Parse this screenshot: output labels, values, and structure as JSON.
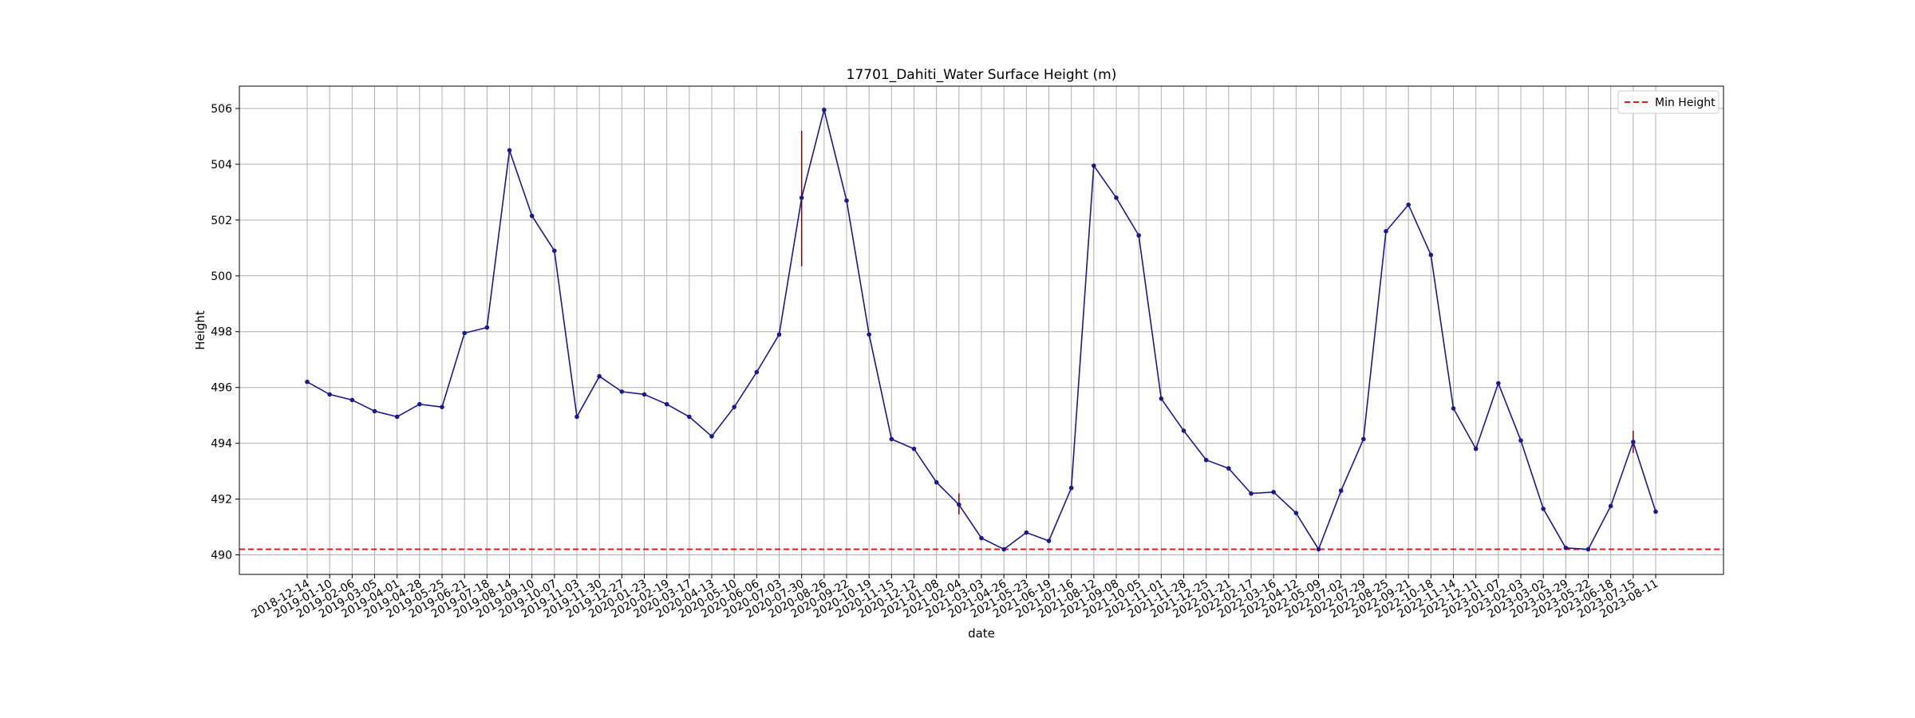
{
  "chart_data": {
    "type": "line",
    "title": "17701_Dahiti_Water Surface Height (m)",
    "xlabel": "date",
    "ylabel": "Height",
    "ylim": [
      489.3,
      506.8
    ],
    "yticks": [
      490,
      492,
      494,
      496,
      498,
      500,
      502,
      504,
      506
    ],
    "grid": true,
    "legend_position": "top-right",
    "colors": {
      "series": "#1a1a8c",
      "min_line": "#e31a1c",
      "error": "#8b0000",
      "grid": "#b0b0b0"
    },
    "x": [
      "2018-12-14",
      "2019-01-10",
      "2019-02-06",
      "2019-03-05",
      "2019-04-01",
      "2019-04-28",
      "2019-05-25",
      "2019-06-21",
      "2019-07-18",
      "2019-08-14",
      "2019-09-10",
      "2019-10-07",
      "2019-11-03",
      "2019-11-30",
      "2019-12-27",
      "2020-01-23",
      "2020-02-19",
      "2020-03-17",
      "2020-04-13",
      "2020-05-10",
      "2020-06-06",
      "2020-07-03",
      "2020-07-30",
      "2020-08-26",
      "2020-09-22",
      "2020-10-19",
      "2020-11-15",
      "2020-12-12",
      "2021-01-08",
      "2021-02-04",
      "2021-03-03",
      "2021-04-26",
      "2021-05-23",
      "2021-06-19",
      "2021-07-16",
      "2021-08-12",
      "2021-09-08",
      "2021-10-05",
      "2021-11-01",
      "2021-11-28",
      "2021-12-25",
      "2022-01-21",
      "2022-02-17",
      "2022-03-16",
      "2022-04-12",
      "2022-05-09",
      "2022-07-02",
      "2022-07-29",
      "2022-08-25",
      "2022-09-21",
      "2022-10-18",
      "2022-11-14",
      "2022-12-11",
      "2023-01-07",
      "2023-02-03",
      "2023-03-02",
      "2023-03-29",
      "2023-05-22",
      "2023-06-18",
      "2023-07-15",
      "2023-08-11"
    ],
    "series": [
      {
        "values": [
          496.2,
          495.75,
          495.55,
          495.15,
          494.95,
          495.4,
          495.3,
          497.95,
          498.15,
          504.5,
          502.15,
          500.9,
          494.95,
          496.4,
          495.85,
          495.75,
          495.4,
          494.95,
          494.25,
          495.3,
          496.55,
          497.9,
          502.8,
          505.95,
          502.7,
          497.9,
          494.15,
          493.8,
          492.6,
          491.8,
          490.6,
          490.2,
          490.8,
          490.5,
          492.4,
          503.95,
          502.8,
          501.45,
          495.6,
          494.45,
          493.4,
          493.1,
          492.2,
          492.25,
          491.5,
          490.2,
          492.3,
          494.15,
          501.6,
          502.55,
          500.75,
          495.25,
          493.8,
          496.15,
          494.1,
          491.65,
          490.25,
          490.2,
          491.75,
          494.05,
          491.55
        ],
        "error_bars": [
          {
            "date": "2020-07-30",
            "low": 500.35,
            "high": 505.2
          },
          {
            "date": "2021-02-04",
            "low": 491.45,
            "high": 492.2
          },
          {
            "date": "2023-07-15",
            "low": 493.65,
            "high": 494.45
          }
        ]
      }
    ],
    "reference_lines": [
      {
        "name": "Min Height",
        "y": 490.2,
        "style": "dashed"
      }
    ]
  }
}
